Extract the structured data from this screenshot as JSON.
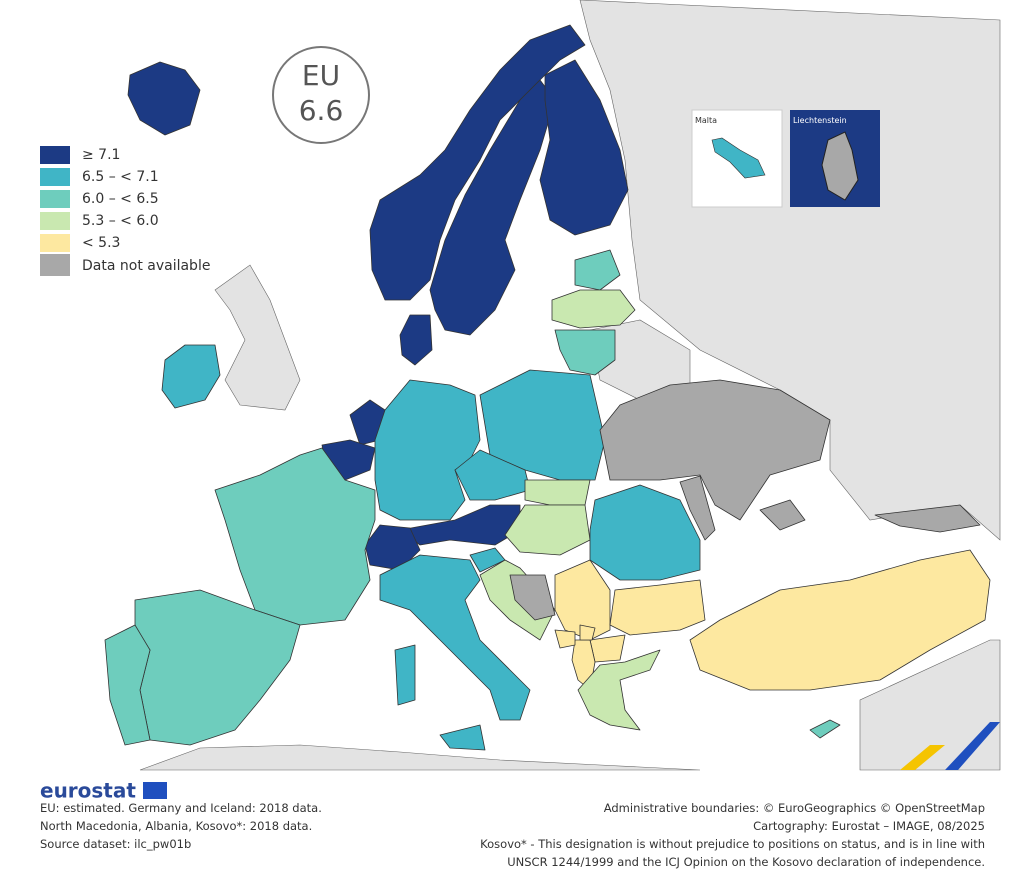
{
  "eu_badge": {
    "label": "EU",
    "value": 6.6
  },
  "legend": {
    "items": [
      {
        "label": "≥ 7.1",
        "color": "#1c3a84"
      },
      {
        "label": "6.5 – < 7.1",
        "color": "#40b5c6"
      },
      {
        "label": "6.0 – < 6.5",
        "color": "#6ecdbd"
      },
      {
        "label": "5.3 – < 6.0",
        "color": "#c9e8b0"
      },
      {
        "label": "< 5.3",
        "color": "#fde8a0"
      }
    ],
    "not_available": {
      "label": "Data not available",
      "color": "#a8a8a8"
    }
  },
  "insets": {
    "malta": {
      "label": "Malta"
    },
    "liechtenstein": {
      "label": "Liechtenstein"
    }
  },
  "footer": {
    "logo": "eurostat",
    "notes": [
      "EU: estimated. Germany and Iceland: 2018 data.",
      "North Macedonia, Albania, Kosovo*: 2018 data.",
      "Source dataset: ilc_pw01b"
    ],
    "credits": [
      "Administrative boundaries: © EuroGeographics © OpenStreetMap",
      "Cartography: Eurostat – IMAGE, 08/2025",
      "Kosovo* - This designation is without prejudice to positions on status, and is in line with",
      "UNSCR 1244/1999 and the ICJ Opinion on the Kosovo declaration of independence."
    ]
  }
}
